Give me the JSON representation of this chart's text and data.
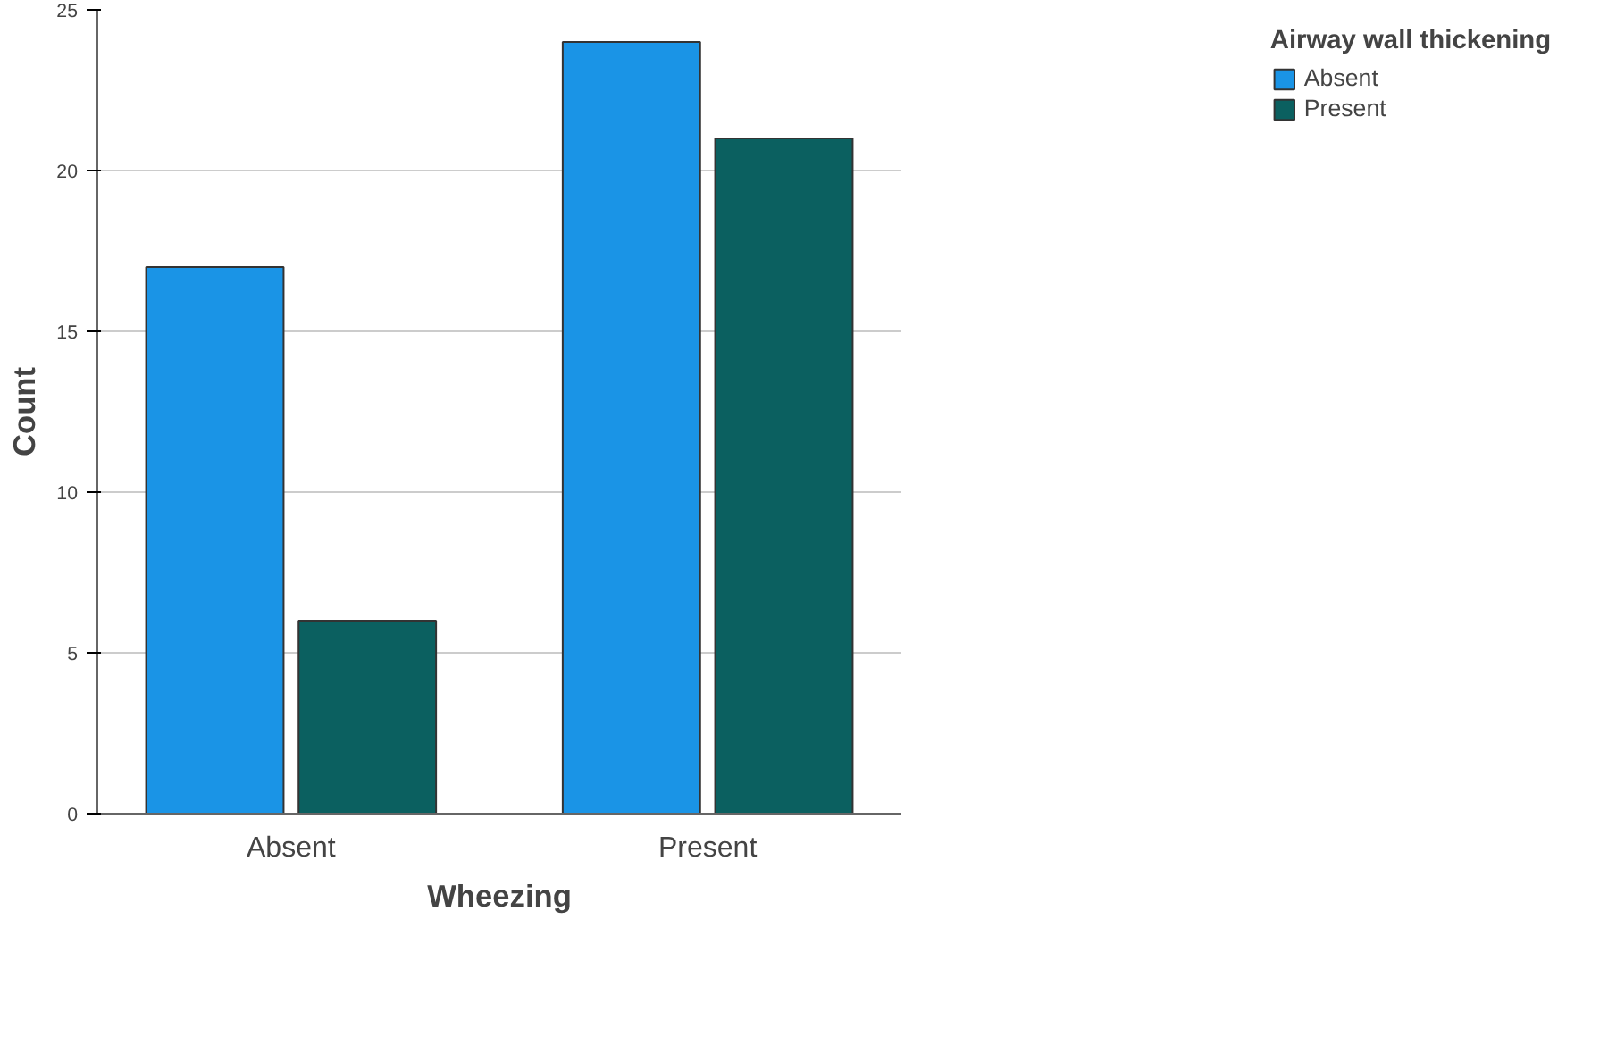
{
  "chart_data": {
    "type": "bar",
    "xlabel": "Wheezing",
    "ylabel": "Count",
    "legend_title": "Airway wall thickening",
    "categories": [
      "Absent",
      "Present"
    ],
    "series": [
      {
        "name": "Absent",
        "color": "#1a94e6",
        "values": [
          17,
          24
        ]
      },
      {
        "name": "Present",
        "color": "#0b6060",
        "values": [
          6,
          21
        ]
      }
    ],
    "ylim": [
      0,
      25
    ],
    "yticks": [
      0,
      5,
      10,
      15,
      20,
      25
    ],
    "grid": "y",
    "legend": "top right"
  }
}
